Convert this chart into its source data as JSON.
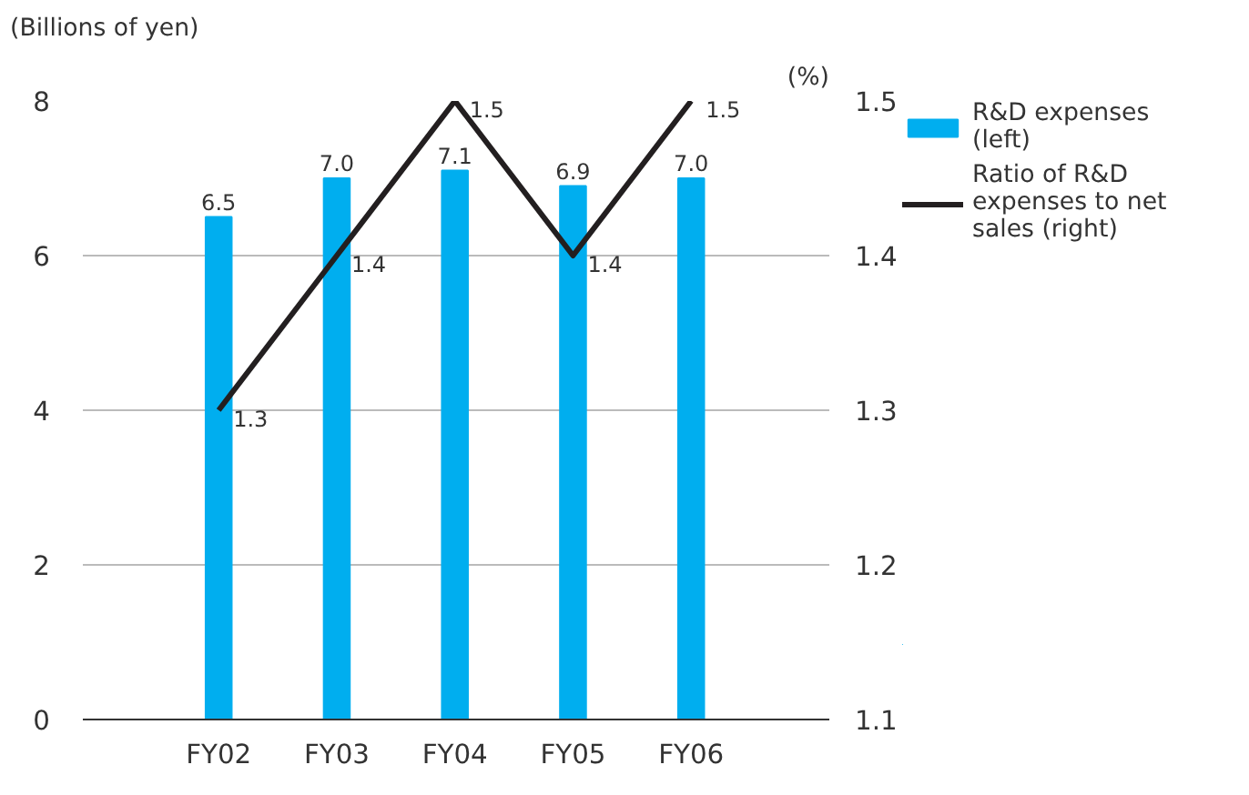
{
  "chart_data": {
    "type": "bar",
    "ylabel": "(Billions of yen)",
    "y2label": "(%)",
    "categories": [
      "FY02",
      "FY03",
      "FY04",
      "FY05",
      "FY06"
    ],
    "series": [
      {
        "name": "R&D expenses (left)",
        "color": "#00aeef",
        "values": [
          6.5,
          7.0,
          7.1,
          6.9,
          7.0
        ],
        "value_labels": [
          "6.5",
          "7.0",
          "7.1",
          "6.9",
          "7.0"
        ]
      },
      {
        "name": "Ratio of R&D expenses to net sales (right)",
        "type": "line",
        "axis": "y2",
        "color": "#231f20",
        "values": [
          1.3,
          1.4,
          1.5,
          1.4,
          1.5
        ],
        "value_labels": [
          "1.3",
          "1.4",
          "1.5",
          "1.4",
          "1.5"
        ]
      }
    ],
    "ylim": [
      0,
      8
    ],
    "yticks": [
      0,
      2,
      4,
      6,
      8
    ],
    "y2lim": [
      1.1,
      1.5
    ],
    "y2ticks": [
      1.1,
      1.2,
      1.3,
      1.4,
      1.5
    ],
    "grid": "y",
    "legend": "right",
    "marker": "none",
    "line_style": "solid"
  }
}
